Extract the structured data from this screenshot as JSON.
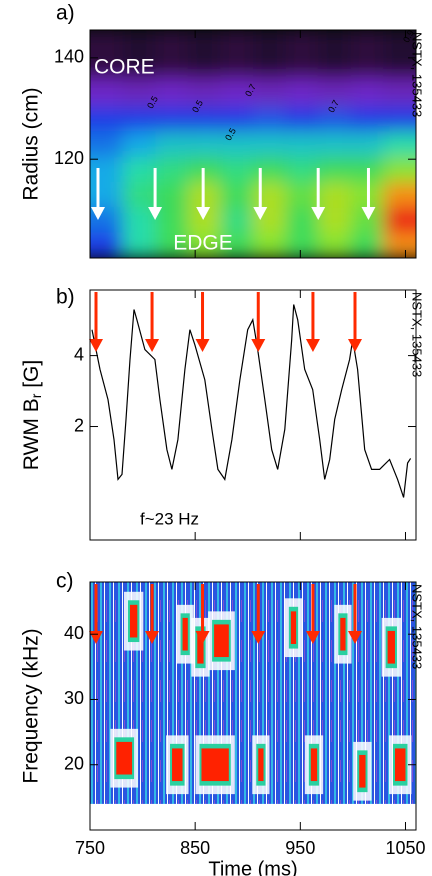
{
  "chart_data": [
    {
      "type": "heatmap",
      "panel": "a)",
      "ylabel": "Radius (cm)",
      "side_text": "NSTX, 135433",
      "annotations": [
        "CORE",
        "EDGE"
      ],
      "contour_labels": [
        "0.5",
        "0.5",
        "0.7",
        "0.5",
        "0.7",
        "0.9"
      ],
      "x": [
        765.5,
        796.5,
        827.5,
        858.5,
        889.5,
        920.5,
        951.5,
        982.5,
        1013.5,
        1044.5
      ],
      "y": [
        103,
        108,
        113,
        118,
        123,
        128,
        133,
        138,
        143
      ],
      "z": [
        [
          0.3,
          0.5,
          0.6,
          0.7,
          0.6,
          0.7,
          0.6,
          0.7,
          0.6,
          0.9
        ],
        [
          0.35,
          0.5,
          0.6,
          0.75,
          0.55,
          0.75,
          0.6,
          0.75,
          0.65,
          1.0
        ],
        [
          0.4,
          0.55,
          0.6,
          0.75,
          0.6,
          0.75,
          0.65,
          0.75,
          0.7,
          0.9
        ],
        [
          0.4,
          0.5,
          0.55,
          0.6,
          0.55,
          0.6,
          0.55,
          0.6,
          0.6,
          0.7
        ],
        [
          0.35,
          0.4,
          0.45,
          0.45,
          0.45,
          0.45,
          0.45,
          0.45,
          0.45,
          0.5
        ],
        [
          0.3,
          0.3,
          0.3,
          0.3,
          0.3,
          0.32,
          0.3,
          0.32,
          0.3,
          0.3
        ],
        [
          0.22,
          0.2,
          0.22,
          0.2,
          0.22,
          0.2,
          0.22,
          0.2,
          0.22,
          0.2
        ],
        [
          0.14,
          0.12,
          0.14,
          0.12,
          0.14,
          0.12,
          0.14,
          0.12,
          0.14,
          0.12
        ],
        [
          0.05,
          0.04,
          0.05,
          0.04,
          0.05,
          0.04,
          0.05,
          0.04,
          0.05,
          0.04
        ]
      ],
      "xlim": [
        750,
        1060
      ],
      "ylim": [
        100.5,
        145.5
      ],
      "yticks": [
        120,
        140
      ],
      "arrows": [
        757.6,
        811.9,
        857.6,
        911.9,
        967,
        1014.8
      ],
      "arrow_color": "#ffffff"
    },
    {
      "type": "line",
      "panel": "b)",
      "ylabel": {
        "text": "RWM B",
        "sub": "r",
        "after": " [G]"
      },
      "side_text": "NSTX, 135433",
      "annotations": [
        "f~23 Hz"
      ],
      "x": [
        751.9,
        759.5,
        767.1,
        772.8,
        776.6,
        780.4,
        784.2,
        788.0,
        791.8,
        794.6,
        802.2,
        811.7,
        816.5,
        823.1,
        827.9,
        833.6,
        840.2,
        845.0,
        849.7,
        859.2,
        865.9,
        871.6,
        878.2,
        884.9,
        892.5,
        900.0,
        904.8,
        909.5,
        916.2,
        922.8,
        928.5,
        935.2,
        941.8,
        943.7,
        947.5,
        954.2,
        961.8,
        968.4,
        973.2,
        977.9,
        982.7,
        989.3,
        996.9,
        999.8,
        1004.5,
        1011.2,
        1017.8,
        1025.4,
        1034.9,
        1042.5,
        1048.2,
        1052.0,
        1054.9
      ],
      "values": [
        4.73,
        3.61,
        2.76,
        1.63,
        0.51,
        0.65,
        2.2,
        3.89,
        5.3,
        5.01,
        4.17,
        3.89,
        2.76,
        1.35,
        0.79,
        1.63,
        3.61,
        4.73,
        4.31,
        3.32,
        1.92,
        0.79,
        0.51,
        1.63,
        3.32,
        4.73,
        5.01,
        4.17,
        2.76,
        1.35,
        0.79,
        1.92,
        4.45,
        5.44,
        5.01,
        3.61,
        3.04,
        1.63,
        0.51,
        1.07,
        2.2,
        3.04,
        3.89,
        4.45,
        3.61,
        1.35,
        0.79,
        0.79,
        1.07,
        0.51,
        0.0,
        0.97,
        1.1
      ],
      "color": "#000000",
      "xlim": [
        750,
        1060
      ],
      "ylim": [
        -1.2,
        5.85
      ],
      "yticks": [
        2,
        4
      ],
      "arrows": [
        755.7,
        809,
        857,
        910,
        962,
        1002
      ],
      "arrow_color": "#ff2a00"
    },
    {
      "type": "spectrogram",
      "panel": "c)",
      "ylabel": "Frequency (kHz)",
      "xlabel": "Time (ms)",
      "side_text": "NSTX, 135433",
      "bursts": {
        "t_start": [
          775,
          828,
          856,
          910,
          960,
          1006,
          1040,
          788,
          838,
          852,
          868,
          941,
          988,
          1033
        ],
        "t_end": [
          790,
          838,
          882,
          915,
          966,
          1012,
          1050,
          795,
          843,
          858,
          882,
          946,
          993,
          1040
        ],
        "f": [
          21,
          20,
          20,
          20,
          20,
          19,
          20,
          42,
          40,
          38,
          39,
          41,
          40,
          38
        ]
      },
      "color": "#ff2200",
      "xlim": [
        750,
        1060
      ],
      "ylim": [
        10,
        48
      ],
      "yticks": [
        20,
        30,
        40
      ],
      "xticks": [
        750,
        850,
        950,
        1050
      ],
      "arrows": [
        755.7,
        809,
        857,
        910,
        962,
        1002
      ],
      "arrow_color": "#ff2a00"
    }
  ]
}
